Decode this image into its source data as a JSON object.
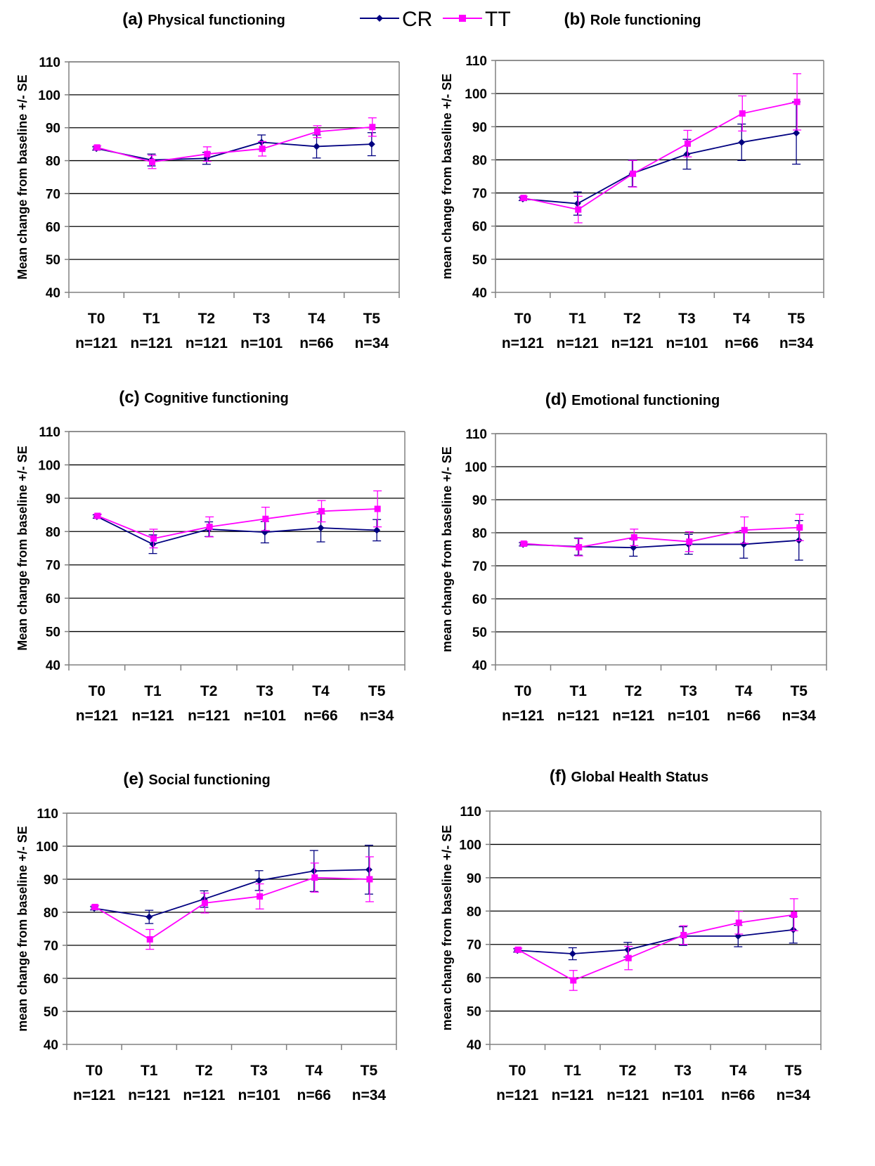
{
  "colors": {
    "CR": "#000080",
    "TT": "#ff00ff",
    "grid": "#000000",
    "axis": "#808080"
  },
  "legend": {
    "series": [
      {
        "name": "CR",
        "marker": "diamond"
      },
      {
        "name": "TT",
        "marker": "square"
      }
    ]
  },
  "chart_data": [
    {
      "type": "line",
      "label": "(a)",
      "title": "Physical functioning",
      "ylabel": "Mean change from baseline +/- SE",
      "ylim": [
        40,
        110
      ],
      "yticks": [
        40,
        50,
        60,
        70,
        80,
        90,
        100,
        110
      ],
      "grid": true,
      "categories": [
        "T0",
        "T1",
        "T2",
        "T3",
        "T4",
        "T5"
      ],
      "n_labels": [
        "n=121",
        "n=121",
        "n=121",
        "n=101",
        "n=66",
        "n=34"
      ],
      "series": [
        {
          "name": "CR",
          "values": [
            83.7,
            80.2,
            80.7,
            85.6,
            84.3,
            85.0
          ],
          "se": [
            0.5,
            1.8,
            1.8,
            2.2,
            3.5,
            3.5
          ]
        },
        {
          "name": "TT",
          "values": [
            84.0,
            79.6,
            82.0,
            83.6,
            88.8,
            90.2
          ],
          "se": [
            0.5,
            2.0,
            2.2,
            2.2,
            1.8,
            2.8
          ]
        }
      ]
    },
    {
      "type": "line",
      "label": "(b)",
      "title": "Role functioning",
      "ylabel": "mean change from baseline +/- SE",
      "ylim": [
        40,
        110
      ],
      "yticks": [
        40,
        50,
        60,
        70,
        80,
        90,
        100,
        110
      ],
      "grid": true,
      "categories": [
        "T0",
        "T1",
        "T2",
        "T3",
        "T4",
        "T5"
      ],
      "n_labels": [
        "n=121",
        "n=121",
        "n=121",
        "n=101",
        "n=66",
        "n=34"
      ],
      "series": [
        {
          "name": "CR",
          "values": [
            68.2,
            66.8,
            75.9,
            81.7,
            85.3,
            88.1
          ],
          "se": [
            0.5,
            3.5,
            4.0,
            4.5,
            5.5,
            9.4
          ]
        },
        {
          "name": "TT",
          "values": [
            68.5,
            65.0,
            75.8,
            84.9,
            94.0,
            97.5
          ],
          "se": [
            0.5,
            4.0,
            4.0,
            4.0,
            5.3,
            8.5
          ]
        }
      ]
    },
    {
      "type": "line",
      "label": "(c)",
      "title": "Cognitive functioning",
      "ylabel": "Mean change from baseline +/- SE",
      "ylim": [
        40,
        110
      ],
      "yticks": [
        40,
        50,
        60,
        70,
        80,
        90,
        100,
        110
      ],
      "grid": true,
      "categories": [
        "T0",
        "T1",
        "T2",
        "T3",
        "T4",
        "T5"
      ],
      "n_labels": [
        "n=121",
        "n=121",
        "n=121",
        "n=101",
        "n=66",
        "n=34"
      ],
      "series": [
        {
          "name": "CR",
          "values": [
            84.5,
            76.2,
            80.7,
            79.8,
            81.1,
            80.4
          ],
          "se": [
            0.5,
            2.8,
            2.2,
            3.2,
            4.2,
            3.2
          ]
        },
        {
          "name": "TT",
          "values": [
            84.7,
            77.9,
            81.4,
            83.8,
            86.1,
            86.8
          ],
          "se": [
            0.5,
            2.8,
            3.0,
            3.5,
            3.2,
            5.4
          ]
        }
      ]
    },
    {
      "type": "line",
      "label": "(d)",
      "title": "Emotional functioning",
      "ylabel": "mean change from baseline +/- SE",
      "ylim": [
        40,
        110
      ],
      "yticks": [
        40,
        50,
        60,
        70,
        80,
        90,
        100,
        110
      ],
      "grid": true,
      "categories": [
        "T0",
        "T1",
        "T2",
        "T3",
        "T4",
        "T5"
      ],
      "n_labels": [
        "n=121",
        "n=121",
        "n=121",
        "n=101",
        "n=66",
        "n=34"
      ],
      "series": [
        {
          "name": "CR",
          "values": [
            76.5,
            75.8,
            75.5,
            76.5,
            76.5,
            77.7
          ],
          "se": [
            0.5,
            2.6,
            2.6,
            3.0,
            4.2,
            6.0
          ]
        },
        {
          "name": "TT",
          "values": [
            76.7,
            75.6,
            78.6,
            77.3,
            80.8,
            81.6
          ],
          "se": [
            0.5,
            2.6,
            2.5,
            3.0,
            4.0,
            4.0
          ]
        }
      ]
    },
    {
      "type": "line",
      "label": "(e)",
      "title": "Social functioning",
      "ylabel": "mean change from baseline +/- SE",
      "ylim": [
        40,
        110
      ],
      "yticks": [
        40,
        50,
        60,
        70,
        80,
        90,
        100,
        110
      ],
      "grid": true,
      "categories": [
        "T0",
        "T1",
        "T2",
        "T3",
        "T4",
        "T5"
      ],
      "n_labels": [
        "n=121",
        "n=121",
        "n=121",
        "n=101",
        "n=66",
        "n=34"
      ],
      "series": [
        {
          "name": "CR",
          "values": [
            81.2,
            78.6,
            84.0,
            89.6,
            92.5,
            92.9
          ],
          "se": [
            0.5,
            2.0,
            2.5,
            3.0,
            6.2,
            7.4
          ]
        },
        {
          "name": "TT",
          "values": [
            81.6,
            71.8,
            82.8,
            84.8,
            90.5,
            90.0
          ],
          "se": [
            0.5,
            3.0,
            3.0,
            3.8,
            4.4,
            6.8
          ]
        }
      ]
    },
    {
      "type": "line",
      "label": "(f)",
      "title": "Global Health Status",
      "ylabel": "mean change from baseline +/- SE",
      "ylim": [
        40,
        110
      ],
      "yticks": [
        40,
        50,
        60,
        70,
        80,
        90,
        100,
        110
      ],
      "grid": true,
      "categories": [
        "T0",
        "T1",
        "T2",
        "T3",
        "T4",
        "T5"
      ],
      "n_labels": [
        "n=121",
        "n=121",
        "n=121",
        "n=101",
        "n=66",
        "n=34"
      ],
      "series": [
        {
          "name": "CR",
          "values": [
            68.2,
            67.2,
            68.4,
            72.5,
            72.5,
            74.4
          ],
          "se": [
            0.5,
            1.8,
            2.2,
            2.8,
            3.2,
            4.0
          ]
        },
        {
          "name": "TT",
          "values": [
            68.4,
            59.2,
            65.9,
            72.8,
            76.5,
            78.9
          ],
          "se": [
            0.5,
            3.0,
            3.5,
            2.8,
            3.4,
            4.8
          ]
        }
      ]
    }
  ]
}
